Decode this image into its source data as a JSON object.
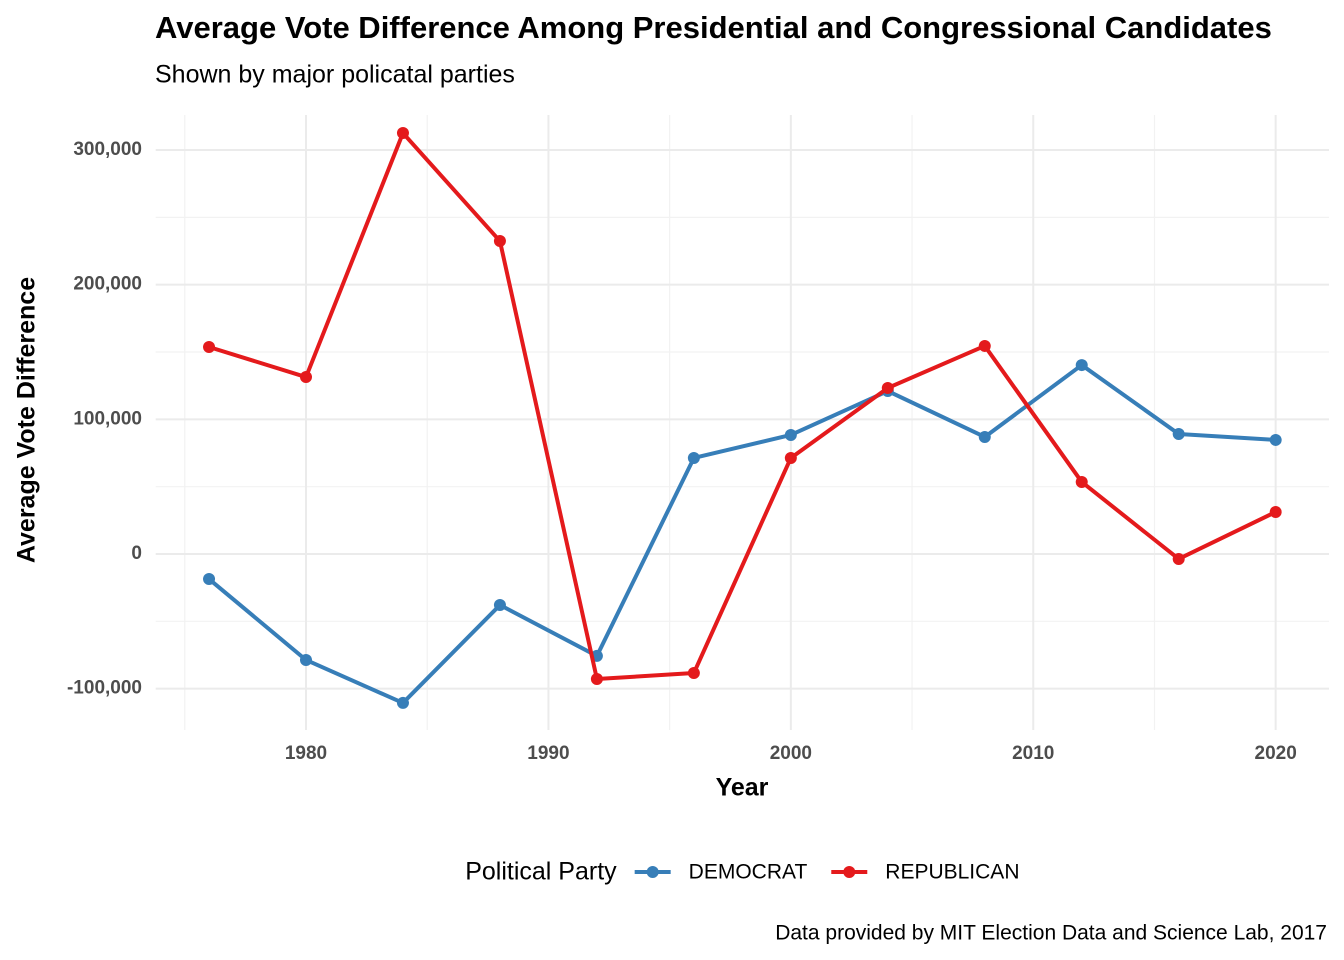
{
  "chart_data": {
    "type": "line",
    "title": "Average Vote Difference Among Presidential and Congressional Candidates",
    "subtitle": "Shown by major policatal parties",
    "x_label": "Year",
    "y_label": "Average Vote Difference",
    "caption": "Data provided by MIT Election Data and Science Lab, 2017",
    "legend_title": "Political Party",
    "x": [
      1976,
      1980,
      1984,
      1988,
      1992,
      1996,
      2000,
      2004,
      2008,
      2012,
      2016,
      2020
    ],
    "series": [
      {
        "name": "DEMOCRAT",
        "color": "#377eb8",
        "values": [
          -18600,
          -78700,
          -110600,
          -37900,
          -75700,
          71300,
          88400,
          121000,
          86900,
          140300,
          89100,
          84700
        ]
      },
      {
        "name": "REPUBLICAN",
        "color": "#e41a1c",
        "values": [
          153700,
          131400,
          312600,
          232400,
          -92800,
          -88400,
          71300,
          123300,
          154500,
          53500,
          -3700,
          31200
        ]
      }
    ],
    "xlim": [
      1973.8,
      2022.2
    ],
    "xticks": [
      1980,
      1990,
      2000,
      2010,
      2020
    ],
    "ylim": [
      -130700,
      326000
    ],
    "yticks": [
      {
        "value": -100000,
        "label": "-100,000"
      },
      0,
      {
        "value": 100000,
        "label": "100,000"
      },
      {
        "value": 200000,
        "label": "200,000"
      },
      {
        "value": 300000,
        "label": "300,000"
      }
    ],
    "grid": true,
    "legend_position": "bottom"
  }
}
